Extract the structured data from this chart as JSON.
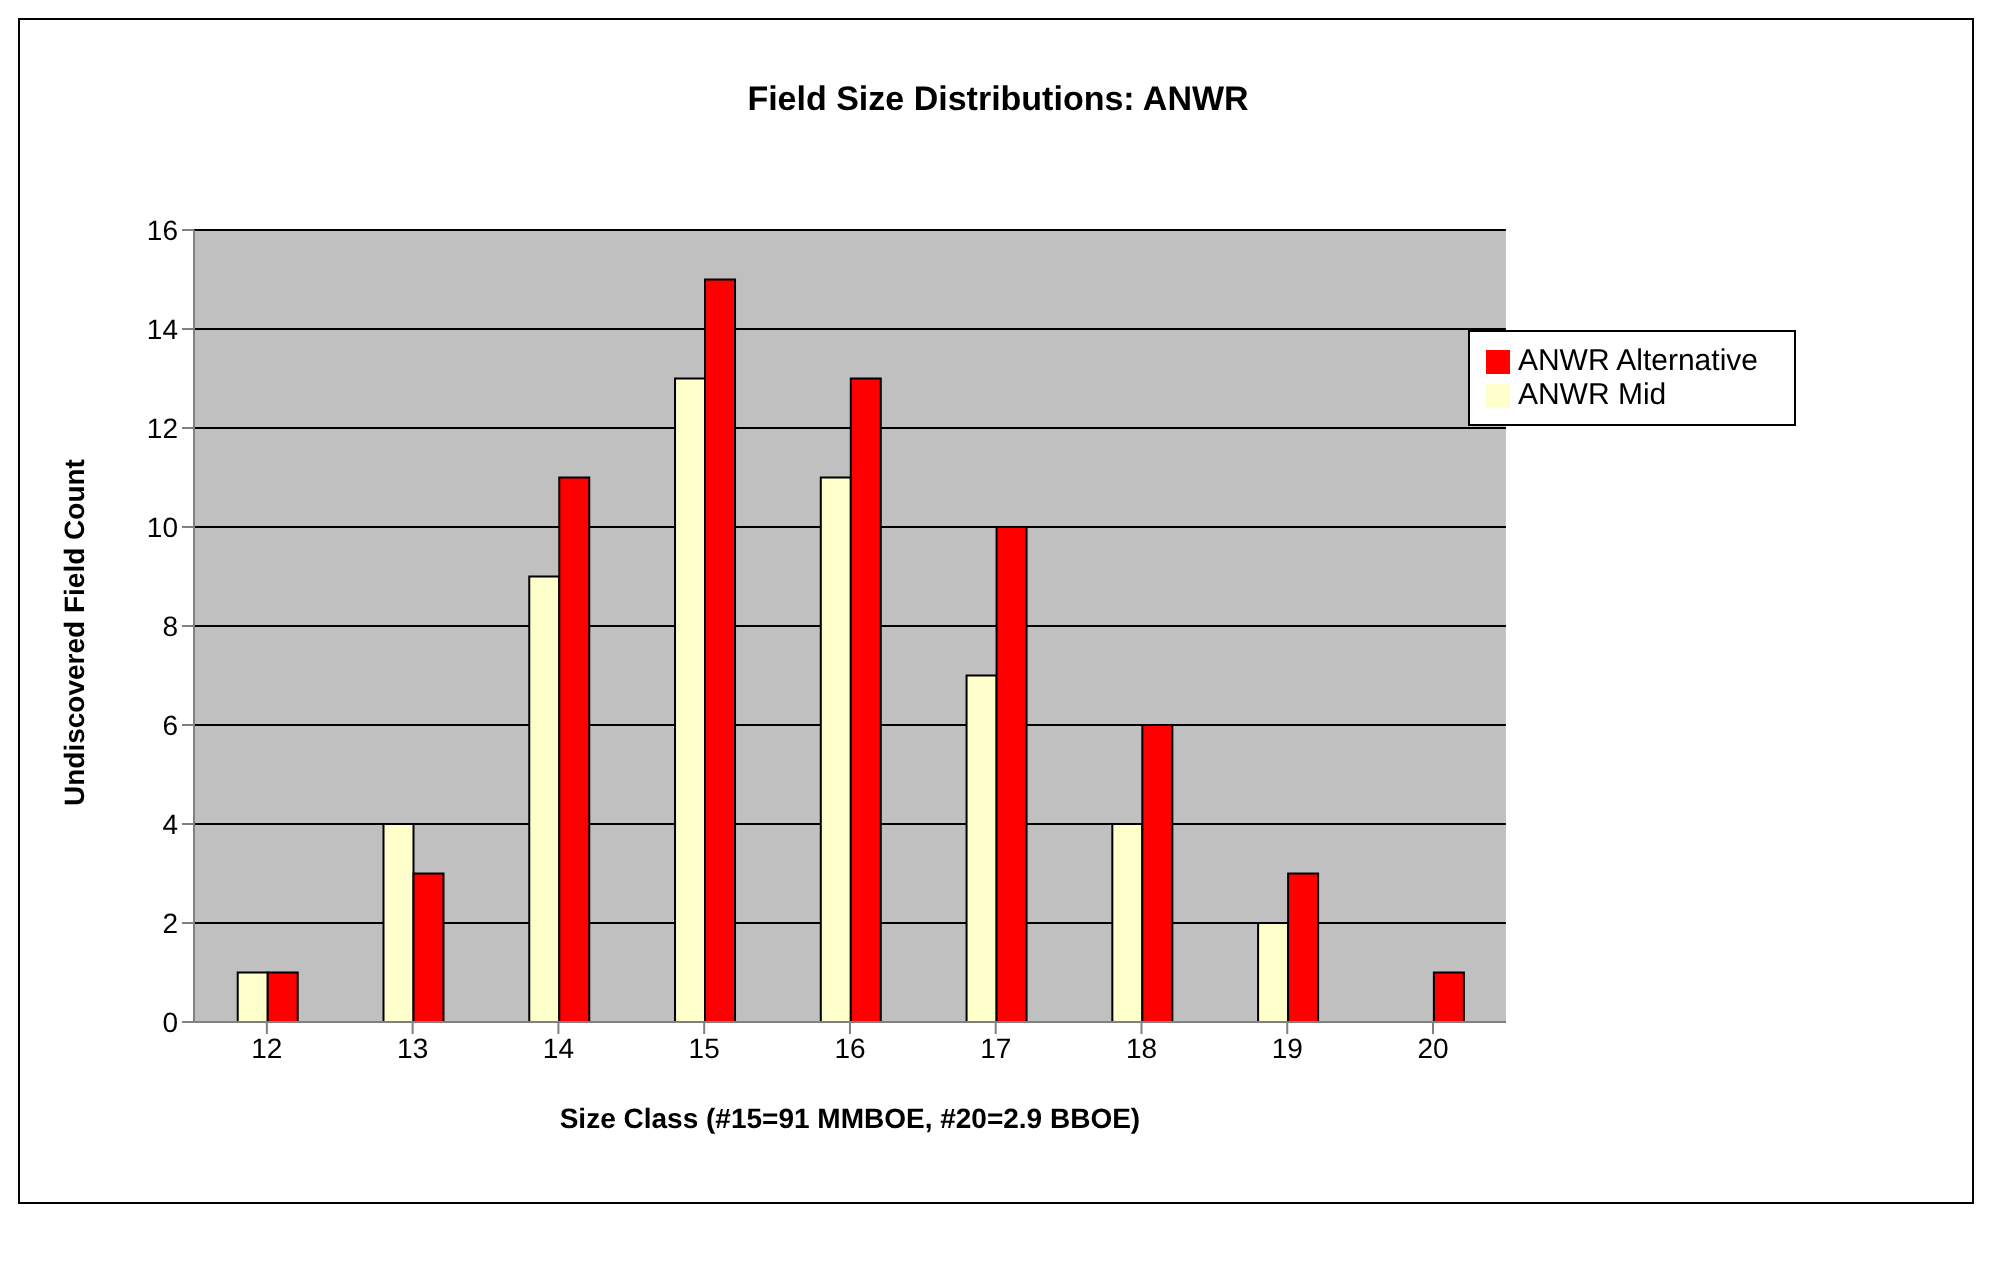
{
  "chart_data": {
    "type": "bar",
    "title": "Field Size Distributions: ANWR",
    "xlabel": "Size Class (#15=91 MMBOE, #20=2.9 BBOE)",
    "ylabel": "Undiscovered Field Count",
    "categories": [
      "12",
      "13",
      "14",
      "15",
      "16",
      "17",
      "18",
      "19",
      "20"
    ],
    "series": [
      {
        "name": "ANWR Mid",
        "color": "#ffffcc",
        "values": [
          1,
          4,
          9,
          13,
          11,
          7,
          4,
          2,
          null
        ]
      },
      {
        "name": "ANWR Alternative",
        "color": "#ff0000",
        "values": [
          1,
          3,
          11,
          15,
          13,
          10,
          6,
          3,
          1
        ]
      }
    ],
    "ylim": [
      0,
      16
    ],
    "yticks": [
      0,
      2,
      4,
      6,
      8,
      10,
      12,
      14,
      16
    ],
    "grid": "y",
    "legend": "top right"
  }
}
